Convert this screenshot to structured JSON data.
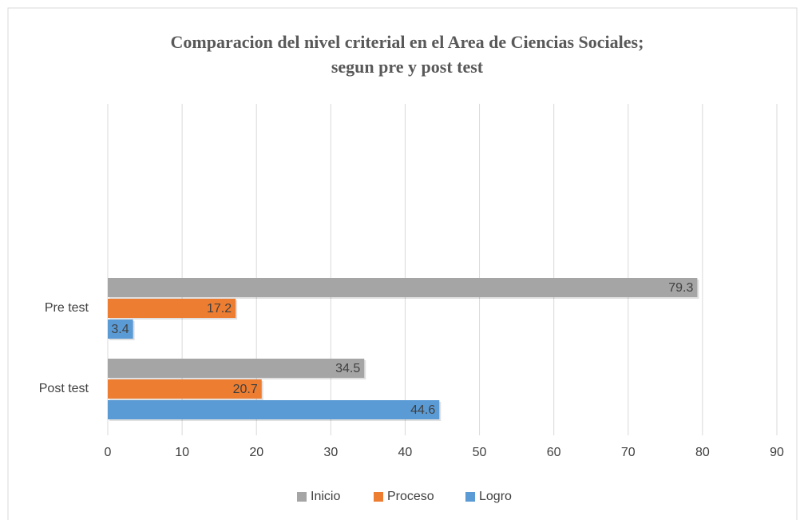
{
  "chart_data": {
    "type": "barh",
    "title": [
      "Comparacion del nivel criterial en el Area de Ciencias Sociales;",
      "segun pre y post test"
    ],
    "categories": [
      "Pre test",
      "Post test"
    ],
    "series": [
      {
        "name": "Inicio",
        "color": "#a5a5a5",
        "values": [
          79.3,
          34.5
        ]
      },
      {
        "name": "Proceso",
        "color": "#ed7d31",
        "values": [
          17.2,
          20.7
        ]
      },
      {
        "name": "Logro",
        "color": "#5b9bd5",
        "values": [
          3.4,
          44.6
        ]
      }
    ],
    "xlim": [
      0,
      90
    ],
    "xticks": [
      0,
      10,
      20,
      30,
      40,
      50,
      60,
      70,
      80,
      90
    ],
    "grid": true,
    "legend": "bottom"
  }
}
